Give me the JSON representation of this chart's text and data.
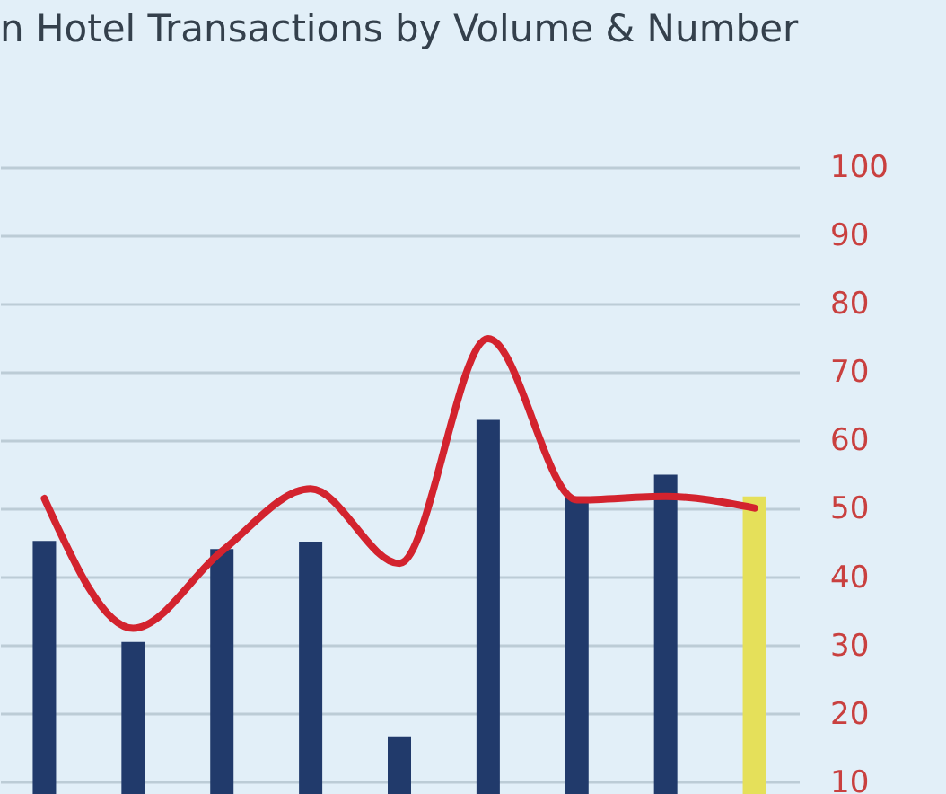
{
  "chart_data": {
    "type": "bar",
    "title": "n Hotel Transactions by Volume & Number",
    "categories": [
      null,
      null,
      null,
      null,
      null,
      null,
      null,
      null,
      null
    ],
    "series": [
      {
        "colors": [
          "#213a6b",
          "#213a6b",
          "#213a6b",
          "#213a6b",
          "#213a6b",
          "#213a6b",
          "#213a6b",
          "#213a6b",
          "#e5e05a"
        ],
        "values": [
          45.3,
          30.5,
          44.1,
          45.2,
          16.7,
          63.0,
          51.5,
          55.0,
          51.8
        ]
      },
      {
        "type": "line",
        "color": "#d3232e",
        "values": [
          51.5,
          32.5,
          43.8,
          52.9,
          42.0,
          74.9,
          51.3,
          51.8,
          50.1
        ],
        "line_style": "solid",
        "marker": "none"
      }
    ],
    "ylim": [
      8,
      100
    ],
    "yticks": [
      10,
      20,
      30,
      40,
      50,
      60,
      70,
      80,
      90,
      100
    ],
    "grid": "y",
    "tick_labels": "y"
  }
}
